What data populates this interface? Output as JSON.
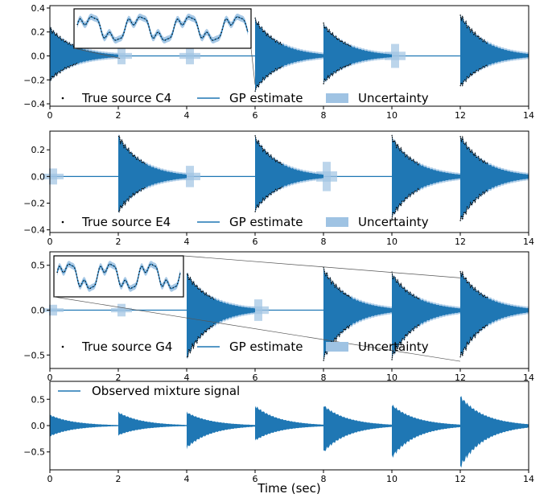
{
  "colors": {
    "gp": "#1f77b4",
    "uncertainty": "#9fc3e3",
    "true_source": "#000000",
    "axes": "#000000",
    "background": "#ffffff"
  },
  "chart_data": [
    {
      "type": "line",
      "xlim": [
        0,
        14
      ],
      "ylim": [
        -0.42,
        0.42
      ],
      "xticks": [
        0,
        2,
        4,
        6,
        8,
        10,
        12,
        14
      ],
      "xtick_labels": [
        "0",
        "2",
        "4",
        "6",
        "8",
        "10",
        "12",
        "14"
      ],
      "yticks": [
        -0.4,
        -0.2,
        0.0,
        0.2,
        0.4
      ],
      "ytick_labels": [
        "−0.4",
        "−0.2",
        "0.0",
        "0.2",
        "0.4"
      ],
      "note_onsets": [
        0,
        6,
        8,
        12
      ],
      "peak_amplitudes": [
        0.23,
        0.3,
        0.26,
        0.34
      ],
      "neg_amplitudes": [
        0.2,
        0.28,
        0.22,
        0.25
      ],
      "ghost_blocks": [
        {
          "x": 2,
          "h": 0.07
        },
        {
          "x": 4,
          "h": 0.07
        },
        {
          "x": 10,
          "h": 0.1
        }
      ],
      "legend": [
        {
          "marker": "dot",
          "label": "True source C4"
        },
        {
          "marker": "line",
          "label": "GP estimate"
        },
        {
          "marker": "patch",
          "label": "Uncertainty"
        }
      ],
      "inset": {
        "zoom_x": 0.7,
        "periods": 3.5
      },
      "xlabel": ""
    },
    {
      "type": "line",
      "xlim": [
        0,
        14
      ],
      "ylim": [
        -0.42,
        0.34
      ],
      "xticks": [
        0,
        2,
        4,
        6,
        8,
        10,
        12,
        14
      ],
      "xtick_labels": [
        "0",
        "2",
        "4",
        "6",
        "8",
        "10",
        "12",
        "14"
      ],
      "yticks": [
        -0.4,
        -0.2,
        0.0,
        0.2
      ],
      "ytick_labels": [
        "−0.4",
        "−0.2",
        "0.0",
        "0.2"
      ],
      "note_onsets": [
        2,
        6,
        10,
        12
      ],
      "peak_amplitudes": [
        0.3,
        0.29,
        0.29,
        0.3
      ],
      "neg_amplitudes": [
        0.26,
        0.25,
        0.3,
        0.33
      ],
      "ghost_blocks": [
        {
          "x": 0,
          "h": 0.06
        },
        {
          "x": 4,
          "h": 0.08
        },
        {
          "x": 8,
          "h": 0.11
        }
      ],
      "legend": [
        {
          "marker": "dot",
          "label": "True source E4"
        },
        {
          "marker": "line",
          "label": "GP estimate"
        },
        {
          "marker": "patch",
          "label": "Uncertainty"
        }
      ],
      "xlabel": ""
    },
    {
      "type": "line",
      "xlim": [
        0,
        14
      ],
      "ylim": [
        -0.65,
        0.65
      ],
      "xticks": [
        0,
        2,
        4,
        6,
        8,
        10,
        12,
        14
      ],
      "xtick_labels": [
        "0",
        "2",
        "4",
        "6",
        "8",
        "10",
        "12",
        "14"
      ],
      "yticks": [
        -0.5,
        0.0,
        0.5
      ],
      "ytick_labels": [
        "−0.5",
        "0.0",
        "0.5"
      ],
      "note_onsets": [
        4,
        8,
        10,
        12
      ],
      "peak_amplitudes": [
        0.4,
        0.45,
        0.4,
        0.43
      ],
      "neg_amplitudes": [
        0.52,
        0.53,
        0.52,
        0.52
      ],
      "ghost_blocks": [
        {
          "x": 0,
          "h": 0.06
        },
        {
          "x": 2,
          "h": 0.07
        },
        {
          "x": 6,
          "h": 0.12
        }
      ],
      "legend": [
        {
          "marker": "dot",
          "label": "True source G4"
        },
        {
          "marker": "line",
          "label": "GP estimate"
        },
        {
          "marker": "patch",
          "label": "Uncertainty"
        }
      ],
      "inset": {
        "zoom_x": 12.0,
        "periods": 3.0
      },
      "xlabel": ""
    },
    {
      "type": "line",
      "xlim": [
        0,
        14
      ],
      "ylim": [
        -0.84,
        0.84
      ],
      "xticks": [
        0,
        2,
        4,
        6,
        8,
        10,
        12,
        14
      ],
      "xtick_labels": [
        "0",
        "2",
        "4",
        "6",
        "8",
        "10",
        "12",
        "14"
      ],
      "yticks": [
        -0.5,
        0.0,
        0.5
      ],
      "ytick_labels": [
        "−0.5",
        "0.0",
        "0.5"
      ],
      "note_onsets": [
        0,
        2,
        4,
        6,
        8,
        10,
        12
      ],
      "peak_amplitudes": [
        0.2,
        0.25,
        0.25,
        0.37,
        0.38,
        0.39,
        0.55
      ],
      "neg_amplitudes": [
        0.2,
        0.18,
        0.42,
        0.28,
        0.5,
        0.6,
        0.78
      ],
      "ghost_blocks": [],
      "legend": [
        {
          "marker": "line",
          "label": "Observed mixture signal"
        }
      ],
      "xlabel": "Time (sec)"
    }
  ]
}
